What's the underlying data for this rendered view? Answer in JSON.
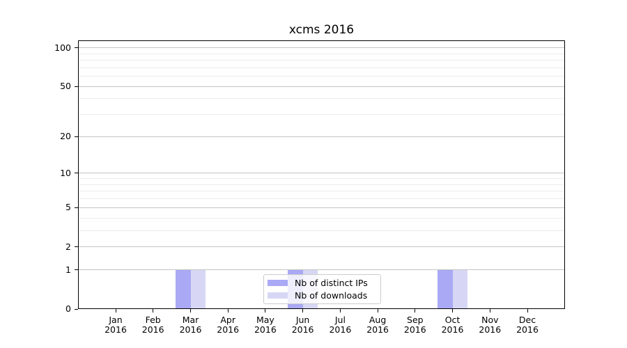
{
  "figure": {
    "title": "xcms 2016"
  },
  "chart_data": {
    "type": "bar",
    "title": "xcms 2016",
    "xlabel": "",
    "ylabel": "",
    "yscale": "log1p",
    "ylim": [
      0,
      113
    ],
    "y_ticks": [
      0,
      1,
      2,
      5,
      10,
      20,
      50,
      100
    ],
    "y_minor_ticks": [
      3,
      4,
      6,
      7,
      8,
      9,
      30,
      40,
      60,
      70,
      80,
      90
    ],
    "grid": "horizontal",
    "legend_position": "bottom-center-inside",
    "categories": [
      {
        "month": "Jan",
        "year": "2016"
      },
      {
        "month": "Feb",
        "year": "2016"
      },
      {
        "month": "Mar",
        "year": "2016"
      },
      {
        "month": "Apr",
        "year": "2016"
      },
      {
        "month": "May",
        "year": "2016"
      },
      {
        "month": "Jun",
        "year": "2016"
      },
      {
        "month": "Jul",
        "year": "2016"
      },
      {
        "month": "Aug",
        "year": "2016"
      },
      {
        "month": "Sep",
        "year": "2016"
      },
      {
        "month": "Oct",
        "year": "2016"
      },
      {
        "month": "Nov",
        "year": "2016"
      },
      {
        "month": "Dec",
        "year": "2016"
      }
    ],
    "series": [
      {
        "name": "Nb of distinct IPs",
        "color": "#a9a9f5",
        "values": [
          0,
          0,
          1,
          0,
          0,
          1,
          0,
          0,
          0,
          1,
          0,
          0
        ]
      },
      {
        "name": "Nb of downloads",
        "color": "#d7d7f5",
        "values": [
          0,
          0,
          1,
          0,
          0,
          1,
          0,
          0,
          0,
          1,
          0,
          0
        ]
      }
    ]
  },
  "colors": {
    "background": "#ffffff",
    "axis": "#000000",
    "text": "#000000",
    "major_gridline": "#c4c4c4",
    "minor_gridline": "#ececec",
    "legend_border": "#cccccc",
    "legend_background": "rgba(255,255,255,0.8)"
  }
}
